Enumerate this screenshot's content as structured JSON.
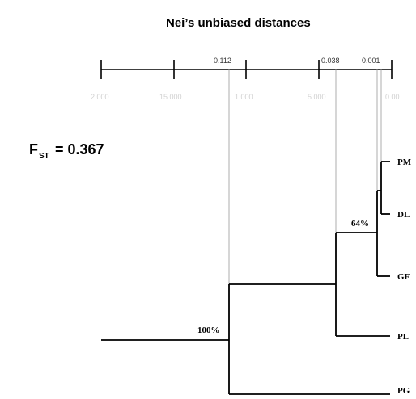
{
  "title": "Nei’s unbiased distances",
  "fst": {
    "main": "F",
    "sub": "ST",
    "value": "= 0.367"
  },
  "scale": {
    "distance_labels": [
      "0.112",
      "0.038",
      "0.001"
    ],
    "faint_tick_labels": [
      "2.000",
      "15.000",
      "1.000",
      "5.000",
      "0.00"
    ]
  },
  "tree": {
    "taxa": [
      "PM",
      "DL",
      "GF",
      "PL",
      "PG"
    ],
    "support": [
      "64%",
      "100%"
    ]
  }
}
